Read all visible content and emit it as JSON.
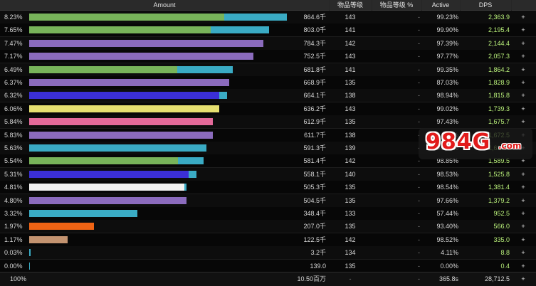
{
  "headers": {
    "amount": "Amount",
    "ilvl": "物品等级",
    "ilvl_pct": "物品等级 %",
    "active": "Active",
    "dps": "DPS"
  },
  "rows": [
    {
      "pct": "8.23%",
      "amount": "864.6千",
      "ilvl": "143",
      "ilvl_pct": "-",
      "active": "99.23%",
      "dps": "2,363.9",
      "plus": "+",
      "bar": [
        {
          "color": "#78b45a",
          "frac": 0.726
        },
        {
          "color": "#3aabc4",
          "frac": 0.234
        }
      ]
    },
    {
      "pct": "7.65%",
      "amount": "803.0千",
      "ilvl": "141",
      "ilvl_pct": "-",
      "active": "99.90%",
      "dps": "2,195.4",
      "plus": "+",
      "bar": [
        {
          "color": "#78b45a",
          "frac": 0.677
        },
        {
          "color": "#3aabc4",
          "frac": 0.216
        }
      ]
    },
    {
      "pct": "7.47%",
      "amount": "784.3千",
      "ilvl": "142",
      "ilvl_pct": "-",
      "active": "97.39%",
      "dps": "2,144.4",
      "plus": "+",
      "bar": [
        {
          "color": "#8b6bbd",
          "frac": 0.872
        }
      ]
    },
    {
      "pct": "7.17%",
      "amount": "752.5千",
      "ilvl": "143",
      "ilvl_pct": "-",
      "active": "97.77%",
      "dps": "2,057.3",
      "plus": "+",
      "bar": [
        {
          "color": "#8b6bbd",
          "frac": 0.836
        }
      ]
    },
    {
      "pct": "6.49%",
      "amount": "681.8千",
      "ilvl": "141",
      "ilvl_pct": "-",
      "active": "99.35%",
      "dps": "1,864.2",
      "plus": "+",
      "bar": [
        {
          "color": "#78b45a",
          "frac": 0.551
        },
        {
          "color": "#3aabc4",
          "frac": 0.207
        }
      ]
    },
    {
      "pct": "6.37%",
      "amount": "668.9千",
      "ilvl": "135",
      "ilvl_pct": "-",
      "active": "87.03%",
      "dps": "1,828.9",
      "plus": "+",
      "bar": [
        {
          "color": "#8b6bbd",
          "frac": 0.745
        }
      ]
    },
    {
      "pct": "6.32%",
      "amount": "664.1千",
      "ilvl": "138",
      "ilvl_pct": "-",
      "active": "98.94%",
      "dps": "1,815.8",
      "plus": "+",
      "bar": [
        {
          "color": "#3b2fd6",
          "frac": 0.707
        },
        {
          "color": "#3aabc4",
          "frac": 0.031
        }
      ]
    },
    {
      "pct": "6.06%",
      "amount": "636.2千",
      "ilvl": "143",
      "ilvl_pct": "-",
      "active": "99.02%",
      "dps": "1,739.3",
      "plus": "+",
      "bar": [
        {
          "color": "#e6e070",
          "frac": 0.708
        }
      ]
    },
    {
      "pct": "5.84%",
      "amount": "612.9千",
      "ilvl": "135",
      "ilvl_pct": "-",
      "active": "97.43%",
      "dps": "1,675.7",
      "plus": "+",
      "bar": [
        {
          "color": "#e46a9a",
          "frac": 0.684
        }
      ]
    },
    {
      "pct": "5.83%",
      "amount": "611.7千",
      "ilvl": "138",
      "ilvl_pct": "-",
      "active": "94.35%",
      "dps": "1,672.5",
      "plus": "+",
      "bar": [
        {
          "color": "#8b6bbd",
          "frac": 0.683
        }
      ]
    },
    {
      "pct": "5.63%",
      "amount": "591.3千",
      "ilvl": "139",
      "ilvl_pct": "-",
      "active": "98.12%",
      "dps": "1,617.0",
      "plus": "+",
      "bar": [
        {
          "color": "#3aabc4",
          "frac": 0.66
        }
      ]
    },
    {
      "pct": "5.54%",
      "amount": "581.4千",
      "ilvl": "142",
      "ilvl_pct": "-",
      "active": "98.85%",
      "dps": "1,589.5",
      "plus": "+",
      "bar": [
        {
          "color": "#78b45a",
          "frac": 0.555
        },
        {
          "color": "#3aabc4",
          "frac": 0.094
        }
      ]
    },
    {
      "pct": "5.31%",
      "amount": "558.1千",
      "ilvl": "140",
      "ilvl_pct": "-",
      "active": "98.53%",
      "dps": "1,525.8",
      "plus": "+",
      "bar": [
        {
          "color": "#3b2fd6",
          "frac": 0.594
        },
        {
          "color": "#3aabc4",
          "frac": 0.029
        }
      ]
    },
    {
      "pct": "4.81%",
      "amount": "505.3千",
      "ilvl": "135",
      "ilvl_pct": "-",
      "active": "98.54%",
      "dps": "1,381.4",
      "plus": "+",
      "bar": [
        {
          "color": "#f2f2f2",
          "frac": 0.577
        },
        {
          "color": "#3aabc4",
          "frac": 0.008
        }
      ]
    },
    {
      "pct": "4.80%",
      "amount": "504.5千",
      "ilvl": "135",
      "ilvl_pct": "-",
      "active": "97.66%",
      "dps": "1,379.2",
      "plus": "+",
      "bar": [
        {
          "color": "#8b6bbd",
          "frac": 0.586
        }
      ]
    },
    {
      "pct": "3.32%",
      "amount": "348.4千",
      "ilvl": "133",
      "ilvl_pct": "-",
      "active": "57.44%",
      "dps": "952.5",
      "plus": "+",
      "bar": [
        {
          "color": "#3aabc4",
          "frac": 0.403
        }
      ]
    },
    {
      "pct": "1.97%",
      "amount": "207.0千",
      "ilvl": "135",
      "ilvl_pct": "-",
      "active": "93.40%",
      "dps": "566.0",
      "plus": "+",
      "bar": [
        {
          "color": "#f06414",
          "frac": 0.24
        }
      ]
    },
    {
      "pct": "1.17%",
      "amount": "122.5千",
      "ilvl": "142",
      "ilvl_pct": "-",
      "active": "98.52%",
      "dps": "335.0",
      "plus": "+",
      "bar": [
        {
          "color": "#c39370",
          "frac": 0.142
        }
      ]
    },
    {
      "pct": "0.03%",
      "amount": "3.2千",
      "ilvl": "134",
      "ilvl_pct": "-",
      "active": "4.11%",
      "dps": "8.8",
      "plus": "+",
      "bar": [
        {
          "color": "#3aabc4",
          "frac": 0.004
        }
      ]
    },
    {
      "pct": "0.00%",
      "amount": "139.0",
      "ilvl": "135",
      "ilvl_pct": "-",
      "active": "0.00%",
      "dps": "0.4",
      "plus": "+",
      "bar": [
        {
          "color": "#3aabc4",
          "frac": 0.002
        }
      ]
    }
  ],
  "footer": {
    "pct": "100%",
    "amount": "10.50百万",
    "ilvl": "-",
    "ilvl_pct": "-",
    "active": "365.8s",
    "dps": "28,712.5",
    "plus": "+"
  },
  "watermark": {
    "main": "984G",
    "suffix": ".com"
  }
}
